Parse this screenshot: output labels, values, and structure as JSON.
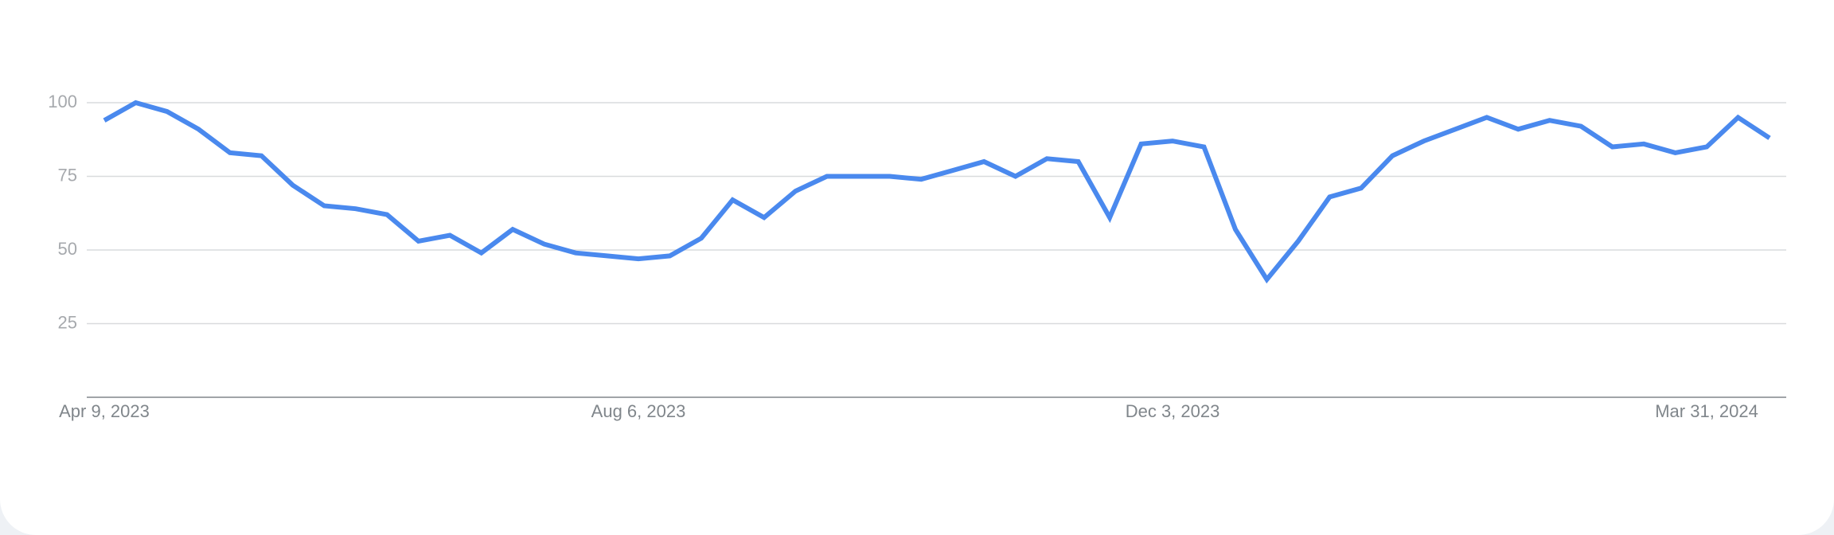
{
  "chart_data": {
    "type": "line",
    "categories": [
      "Apr 9, 2023",
      null,
      null,
      null,
      null,
      null,
      null,
      null,
      null,
      null,
      null,
      null,
      null,
      null,
      null,
      null,
      null,
      "Aug 6, 2023",
      null,
      null,
      null,
      null,
      null,
      null,
      null,
      null,
      null,
      null,
      null,
      null,
      null,
      null,
      null,
      null,
      "Dec 3, 2023",
      null,
      null,
      null,
      null,
      null,
      null,
      null,
      null,
      null,
      null,
      null,
      null,
      null,
      null,
      null,
      null,
      "Mar 31, 2024",
      null,
      null
    ],
    "values": [
      94,
      100,
      97,
      91,
      83,
      82,
      72,
      65,
      64,
      62,
      53,
      55,
      49,
      57,
      52,
      49,
      48,
      47,
      48,
      54,
      67,
      61,
      70,
      75,
      75,
      75,
      74,
      77,
      80,
      75,
      81,
      80,
      61,
      86,
      87,
      85,
      57,
      40,
      53,
      68,
      71,
      82,
      87,
      91,
      95,
      91,
      94,
      92,
      85,
      86,
      83,
      85,
      95,
      88
    ],
    "color": "#4a89ee",
    "ylim": [
      0,
      100
    ],
    "yticks": [
      25,
      50,
      75,
      100
    ],
    "grid": true
  }
}
